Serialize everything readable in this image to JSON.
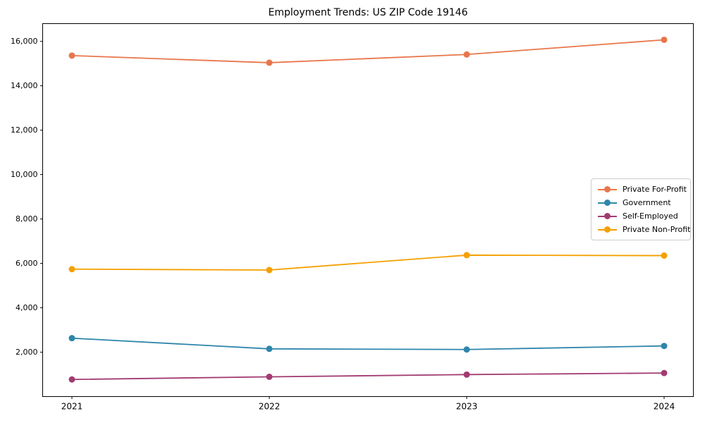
{
  "chart_data": {
    "type": "line",
    "title": "Employment Trends: US ZIP Code 19146",
    "x": [
      "2021",
      "2022",
      "2023",
      "2024"
    ],
    "series": [
      {
        "name": "Private For-Profit",
        "color": "#E8764B",
        "values": [
          15360,
          15040,
          15410,
          16070
        ]
      },
      {
        "name": "Government",
        "color": "#2E86AB",
        "values": [
          2630,
          2150,
          2120,
          2280
        ]
      },
      {
        "name": "Self-Employed",
        "color": "#A23B72",
        "values": [
          770,
          890,
          990,
          1060
        ]
      },
      {
        "name": "Private Non-Profit",
        "color": "#F4A000",
        "values": [
          5740,
          5700,
          6370,
          6350
        ]
      }
    ],
    "xlabel": "",
    "ylabel": "",
    "ylim": [
      0,
      16800
    ],
    "yticks": [
      2000,
      4000,
      6000,
      8000,
      10000,
      12000,
      14000,
      16000
    ],
    "ytick_labels": [
      "2,000",
      "4,000",
      "6,000",
      "8,000",
      "10,000",
      "12,000",
      "14,000",
      "16,000"
    ],
    "grid": false,
    "legend_position": "right-middle",
    "axes_color": "#000000",
    "background_color": "#ffffff"
  }
}
